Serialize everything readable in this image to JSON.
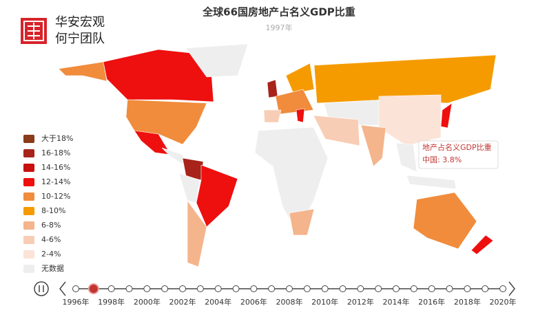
{
  "header": {
    "logo_line1": "华安宏观",
    "logo_line2": "何宁团队",
    "title": "全球66国房地产占名义GDP比重",
    "subtitle": "1997年"
  },
  "legend": [
    {
      "label": "大于18%",
      "color": "#8b3a1a"
    },
    {
      "label": "16-18%",
      "color": "#a8231a"
    },
    {
      "label": "14-16%",
      "color": "#c8100e"
    },
    {
      "label": "12-14%",
      "color": "#ee0f0f"
    },
    {
      "label": "10-12%",
      "color": "#f08c3c"
    },
    {
      "label": "8-10%",
      "color": "#f59b00"
    },
    {
      "label": "6-8%",
      "color": "#f4b48c"
    },
    {
      "label": "4-6%",
      "color": "#f8cdb5"
    },
    {
      "label": "2-4%",
      "color": "#fbe3d7"
    },
    {
      "label": "无数据",
      "color": "#eeeeee"
    }
  ],
  "tooltip": {
    "title": "地产占名义GDP比重",
    "text": "中国: 3.8%"
  },
  "timeline": {
    "labels": [
      "1996年",
      "1998年",
      "2000年",
      "2002年",
      "2004年",
      "2006年",
      "2008年",
      "2010年",
      "2012年",
      "2014年",
      "2016年",
      "2018年",
      "2020年"
    ]
  }
}
